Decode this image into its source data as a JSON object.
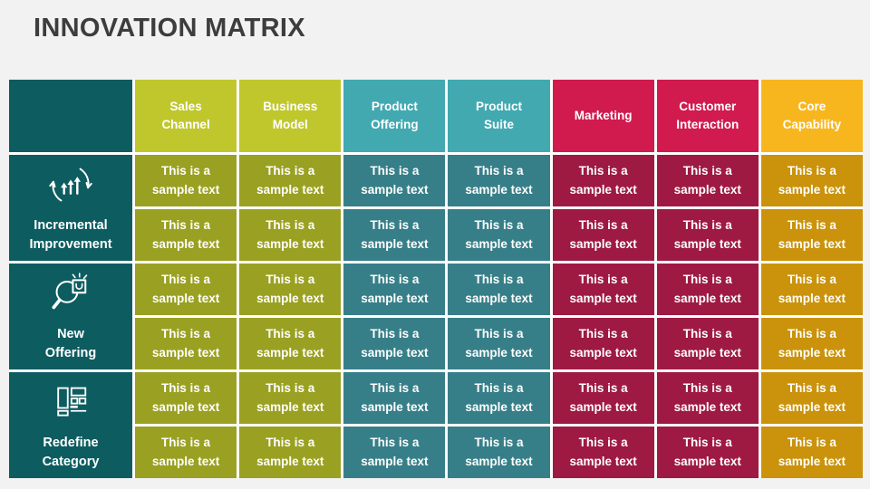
{
  "page": {
    "title": "INNOVATION MATRIX",
    "background_color": "#f2f2f2",
    "title_color": "#3d3d3d"
  },
  "table": {
    "grid_line_color": "#ffffff",
    "label_column_color": "#0d5c60",
    "cell_text": "This is a\nsample text",
    "columns": [
      {
        "label": "Sales\nChannel",
        "header_color": "#c0c72d",
        "cell_color": "#9aa122"
      },
      {
        "label": "Business\nModel",
        "header_color": "#c0c72d",
        "cell_color": "#9aa122"
      },
      {
        "label": "Product\nOffering",
        "header_color": "#42a9b1",
        "cell_color": "#377f88"
      },
      {
        "label": "Product\nSuite",
        "header_color": "#42a9b1",
        "cell_color": "#377f88"
      },
      {
        "label": "Marketing",
        "header_color": "#d11a4e",
        "cell_color": "#9e1a42"
      },
      {
        "label": "Customer\nInteraction",
        "header_color": "#d11a4e",
        "cell_color": "#9e1a42"
      },
      {
        "label": "Core\nCapability",
        "header_color": "#f8b61e",
        "cell_color": "#ca930b"
      }
    ],
    "rows": [
      {
        "label": "Incremental\nImprovement",
        "icon": "growth-cycle-icon",
        "sub_rows": 2
      },
      {
        "label": "New\nOffering",
        "icon": "magnifier-box-icon",
        "sub_rows": 2
      },
      {
        "label": "Redefine\nCategory",
        "icon": "layout-wireframe-icon",
        "sub_rows": 2
      }
    ]
  }
}
